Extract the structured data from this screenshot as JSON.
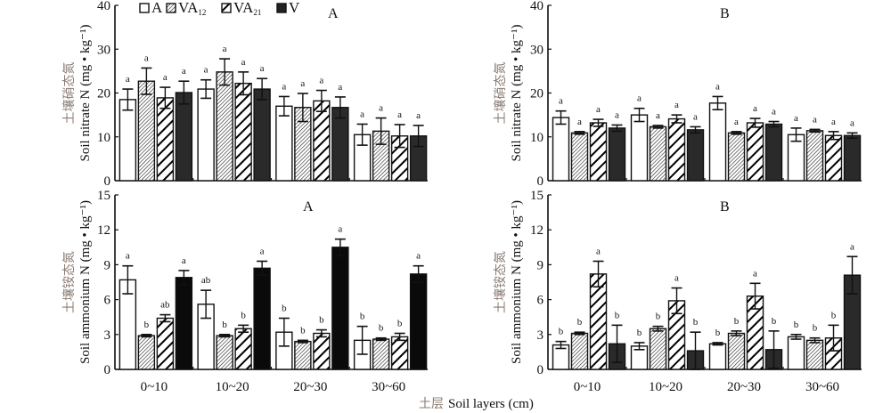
{
  "chart_data": [
    {
      "id": "top-left",
      "type": "bar",
      "title": "A",
      "ylabel_cn": "土壤硝态氮",
      "ylabel_en": "Soil nitrate N (mg • kg⁻¹)",
      "ylim": [
        0,
        40
      ],
      "yticks": [
        0,
        10,
        20,
        30,
        40
      ],
      "categories": [
        "0~10",
        "10~20",
        "20~30",
        "30~60"
      ],
      "show_xticklabels": false,
      "series": [
        {
          "name": "A",
          "values": [
            18.5,
            20.9,
            17.0,
            10.5
          ],
          "errors": [
            2.4,
            2.1,
            2.2,
            2.4
          ],
          "letters": [
            "a",
            "a",
            "a",
            "a"
          ]
        },
        {
          "name": "VA12",
          "values": [
            22.7,
            24.8,
            16.7,
            11.3
          ],
          "errors": [
            3.0,
            3.0,
            3.2,
            3.0
          ],
          "letters": [
            "a",
            "a",
            "a",
            "a"
          ]
        },
        {
          "name": "VA21",
          "values": [
            18.9,
            22.2,
            18.2,
            10.2
          ],
          "errors": [
            2.4,
            2.6,
            2.4,
            2.6
          ],
          "letters": [
            "a",
            "a",
            "a",
            "a"
          ]
        },
        {
          "name": "V",
          "values": [
            20.1,
            20.9,
            16.7,
            10.2
          ],
          "errors": [
            2.6,
            2.4,
            2.4,
            2.4
          ],
          "letters": [
            "a",
            "a",
            "a",
            "a"
          ]
        }
      ]
    },
    {
      "id": "top-right",
      "type": "bar",
      "title": "B",
      "ylabel_cn": "土壤硝态氮",
      "ylabel_en": "Soil nitrate N (mg • kg⁻¹)",
      "ylim": [
        0,
        40
      ],
      "yticks": [
        0,
        10,
        20,
        30,
        40
      ],
      "categories": [
        "0~10",
        "10~20",
        "20~30",
        "30~60"
      ],
      "show_xticklabels": false,
      "series": [
        {
          "name": "A",
          "values": [
            14.4,
            15.0,
            17.7,
            10.5
          ],
          "errors": [
            1.5,
            1.5,
            1.5,
            1.5
          ],
          "letters": [
            "a",
            "a",
            "a",
            "a"
          ]
        },
        {
          "name": "VA12",
          "values": [
            10.9,
            12.3,
            10.9,
            11.4
          ],
          "errors": [
            0.3,
            0.3,
            0.3,
            0.3
          ],
          "letters": [
            "a",
            "a",
            "a",
            "a"
          ]
        },
        {
          "name": "VA21",
          "values": [
            13.2,
            14.1,
            13.2,
            10.3
          ],
          "errors": [
            0.8,
            0.9,
            1.0,
            0.9
          ],
          "letters": [
            "a",
            "a",
            "a",
            "a"
          ]
        },
        {
          "name": "V",
          "values": [
            12.0,
            11.6,
            12.9,
            10.3
          ],
          "errors": [
            0.7,
            0.7,
            0.6,
            0.6
          ],
          "letters": [
            "a",
            "a",
            "a",
            "a"
          ]
        }
      ]
    },
    {
      "id": "bottom-left",
      "type": "bar",
      "title": "A",
      "ylabel_cn": "土壤铵态氮",
      "ylabel_en": "Soil ammonium N (mg • kg⁻¹)",
      "ylim": [
        0,
        15
      ],
      "yticks": [
        0,
        3,
        6,
        9,
        12,
        15
      ],
      "categories": [
        "0~10",
        "10~20",
        "20~30",
        "30~60"
      ],
      "show_xticklabels": true,
      "series": [
        {
          "name": "A",
          "values": [
            7.7,
            5.6,
            3.2,
            2.5
          ],
          "errors": [
            1.2,
            1.2,
            1.2,
            1.2
          ],
          "letters": [
            "a",
            "ab",
            "b",
            "b"
          ]
        },
        {
          "name": "VA12",
          "values": [
            2.9,
            2.9,
            2.4,
            2.6
          ],
          "errors": [
            0.1,
            0.1,
            0.1,
            0.1
          ],
          "letters": [
            "b",
            "b",
            "b",
            "b"
          ]
        },
        {
          "name": "VA21",
          "values": [
            4.4,
            3.5,
            3.1,
            2.8
          ],
          "errors": [
            0.3,
            0.3,
            0.3,
            0.3
          ],
          "letters": [
            "ab",
            "b",
            "b",
            "b"
          ]
        },
        {
          "name": "V",
          "values": [
            7.9,
            8.7,
            10.5,
            8.2
          ],
          "errors": [
            0.6,
            0.6,
            0.7,
            0.7
          ],
          "letters": [
            "a",
            "a",
            "a",
            "a"
          ]
        }
      ]
    },
    {
      "id": "bottom-right",
      "type": "bar",
      "title": "B",
      "ylabel_cn": "土壤铵态氮",
      "ylabel_en": "Soil ammonium N (mg • kg⁻¹)",
      "ylim": [
        0,
        15
      ],
      "yticks": [
        0,
        3,
        6,
        9,
        12,
        15
      ],
      "categories": [
        "0~10",
        "10~20",
        "20~30",
        "30~60"
      ],
      "show_xticklabels": true,
      "series": [
        {
          "name": "A",
          "values": [
            2.1,
            2.0,
            2.2,
            2.8
          ],
          "errors": [
            0.3,
            0.3,
            0.1,
            0.2
          ],
          "letters": [
            "b",
            "b",
            "b",
            "b"
          ]
        },
        {
          "name": "VA12",
          "values": [
            3.1,
            3.5,
            3.1,
            2.5
          ],
          "errors": [
            0.1,
            0.2,
            0.2,
            0.2
          ],
          "letters": [
            "b",
            "b",
            "b",
            "b"
          ]
        },
        {
          "name": "VA21",
          "values": [
            8.2,
            5.9,
            6.3,
            2.7
          ],
          "errors": [
            1.1,
            1.1,
            1.1,
            1.1
          ],
          "letters": [
            "a",
            "a",
            "a",
            "b"
          ]
        },
        {
          "name": "V",
          "values": [
            2.2,
            1.6,
            1.7,
            8.1
          ],
          "errors": [
            1.6,
            1.6,
            1.6,
            1.6
          ],
          "letters": [
            "b",
            "b",
            "b",
            "a"
          ]
        }
      ]
    }
  ],
  "legend": {
    "placement": "top-left-panel-top",
    "items": [
      {
        "name": "A",
        "label": "A",
        "sub": "",
        "fill": "white"
      },
      {
        "name": "VA12",
        "label": "VA",
        "sub": "12",
        "fill": "fine-hatch"
      },
      {
        "name": "VA21",
        "label": "VA",
        "sub": "21",
        "fill": "bold-hatch"
      },
      {
        "name": "V",
        "label": "V",
        "sub": "",
        "fill": "dark"
      }
    ]
  },
  "xlabel": {
    "cn": "土层",
    "en": "Soil layers (cm)"
  },
  "colors": {
    "dark_top": "#2a2a2a",
    "dark_bottom": "#0a0a0a",
    "axis": "#111111",
    "cn_label": "#8a7b72"
  }
}
